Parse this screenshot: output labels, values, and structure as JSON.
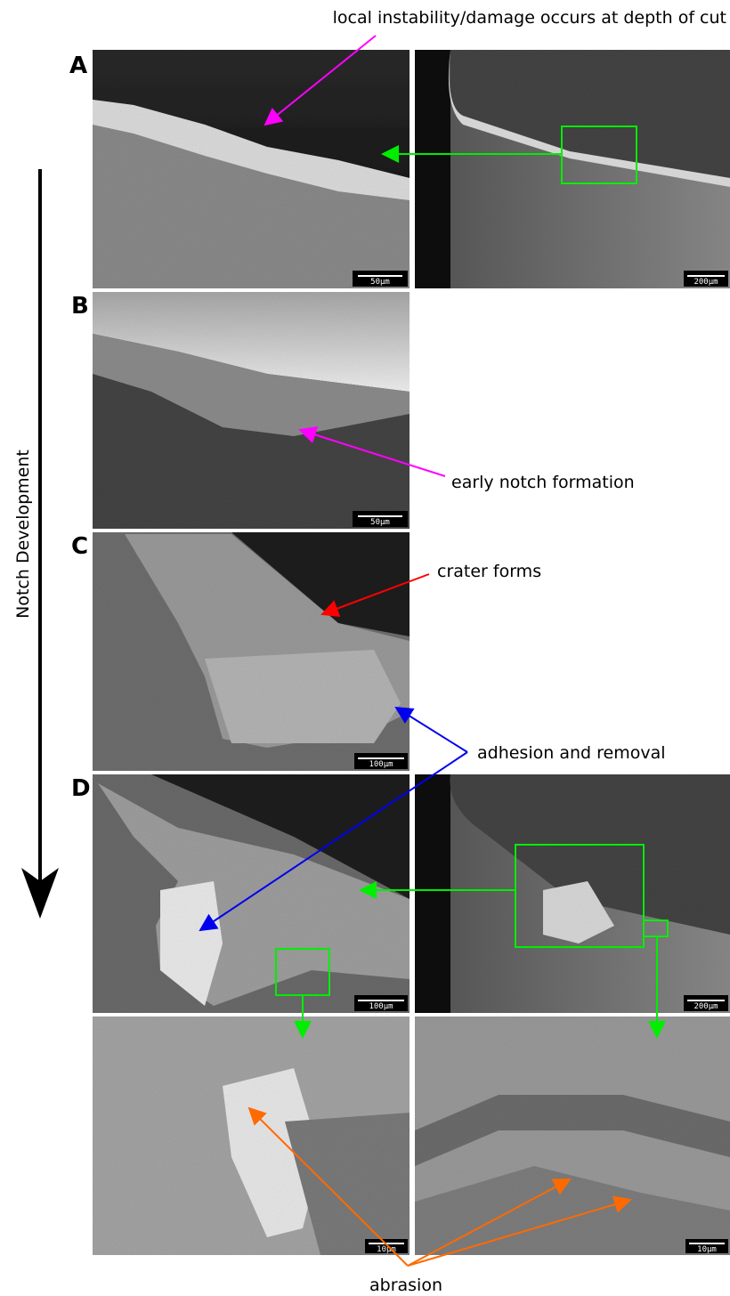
{
  "annotations": {
    "top": "local instability/damage occurs at depth of cut",
    "early_notch": "early notch formation",
    "crater": "crater forms",
    "adhesion": "adhesion and removal",
    "abrasion": "abrasion"
  },
  "axis_label": "Notch Development",
  "panels": [
    {
      "label": "A",
      "scale_bars": [
        "50μm",
        "200μm"
      ]
    },
    {
      "label": "B",
      "scale_bars": [
        "50μm"
      ]
    },
    {
      "label": "C",
      "scale_bars": [
        "100μm"
      ]
    },
    {
      "label": "D",
      "scale_bars": [
        "100μm",
        "200μm"
      ]
    }
  ],
  "detail_scale_bars": [
    "10μm",
    "10μm"
  ]
}
